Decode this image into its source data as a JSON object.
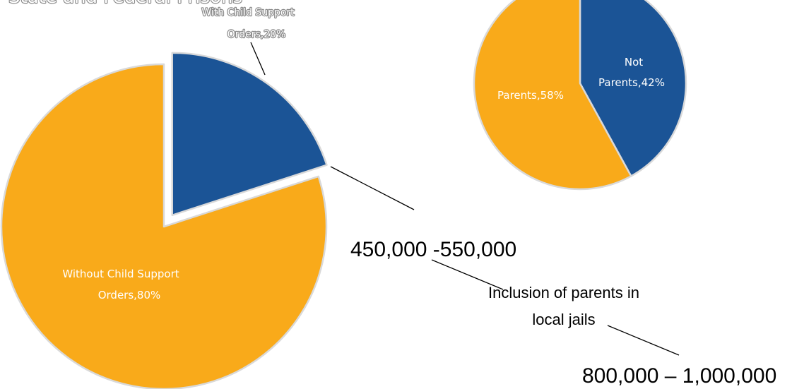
{
  "colors": {
    "gold": "#f9aa1a",
    "blue": "#1b5496",
    "slice_border": "#d9d9d9",
    "label_outline": "#8c8c8c"
  },
  "chart_data": [
    {
      "type": "pie",
      "title": "State and Federal Prisons",
      "slices": [
        {
          "label": "With Child Support Orders",
          "value": 20,
          "display": "With Child Support Orders,20%",
          "color": "#1b5496",
          "exploded": true
        },
        {
          "label": "Without Child Support Orders",
          "value": 80,
          "display": "Without Child Support Orders,80%",
          "color": "#f9aa1a",
          "exploded": false
        }
      ]
    },
    {
      "type": "pie",
      "title": "",
      "slices": [
        {
          "label": "Not Parents",
          "value": 42,
          "display": "Not Parents,42%",
          "color": "#1b5496"
        },
        {
          "label": "Parents",
          "value": 58,
          "display": "Parents,58%",
          "color": "#f9aa1a"
        }
      ]
    }
  ],
  "annotations": {
    "range_prison": "450,000 -550,000",
    "note_line1": "Inclusion of parents in",
    "note_line2": "local jails",
    "range_total": "800,000 – 1,000,000"
  },
  "labels": {
    "with_orders_line1": "With Child Support",
    "with_orders_line2": "Orders,20%",
    "without_orders_line1": "Without Child Support",
    "without_orders_line2": "Orders,80%",
    "not_parents_line1": "Not",
    "not_parents_line2": "Parents,42%",
    "parents": "Parents,58%"
  }
}
